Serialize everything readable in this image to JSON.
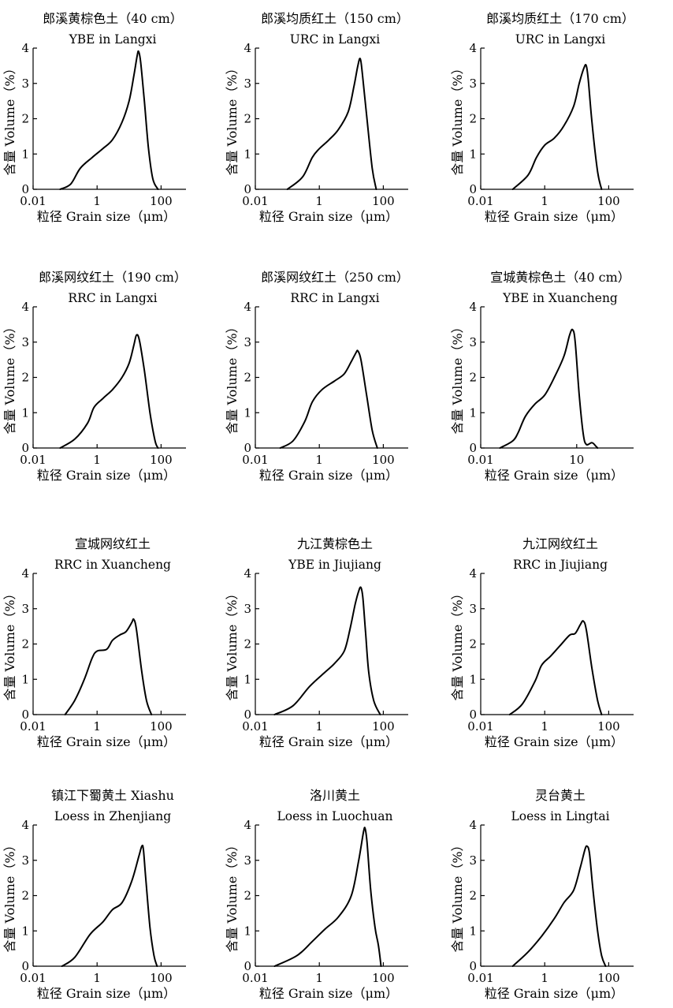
{
  "figure": {
    "xlabel": "粒径 Grain size（μm）",
    "ylabel": "含量 Volume（%）"
  },
  "chart_data": [
    {
      "type": "line",
      "title": "郎溪黄棕色土（40 cm）",
      "subtitle": "YBE in Langxi",
      "x_ticks": [
        "0.01",
        "1",
        "100"
      ],
      "y_ticks": [
        "0",
        "1",
        "2",
        "3",
        "4"
      ],
      "x_scale": "log",
      "xlim": [
        0.01,
        600
      ],
      "ylim": [
        0,
        4
      ],
      "series": [
        {
          "points": [
            [
              0.07,
              0
            ],
            [
              0.15,
              0.15
            ],
            [
              0.3,
              0.6
            ],
            [
              0.7,
              0.9
            ],
            [
              1.5,
              1.15
            ],
            [
              3,
              1.4
            ],
            [
              6,
              1.9
            ],
            [
              10,
              2.5
            ],
            [
              14,
              3.2
            ],
            [
              18,
              3.8
            ],
            [
              20,
              3.9
            ],
            [
              23,
              3.6
            ],
            [
              30,
              2.5
            ],
            [
              40,
              1.2
            ],
            [
              55,
              0.3
            ],
            [
              80,
              0
            ]
          ]
        }
      ]
    },
    {
      "type": "line",
      "title": "郎溪均质红土（150 cm）",
      "subtitle": "URC in Langxi",
      "x_ticks": [
        "0.01",
        "1",
        "100"
      ],
      "y_ticks": [
        "0",
        "1",
        "2",
        "3",
        "4"
      ],
      "x_scale": "log",
      "xlim": [
        0.01,
        600
      ],
      "ylim": [
        0,
        4
      ],
      "series": [
        {
          "points": [
            [
              0.1,
              0
            ],
            [
              0.3,
              0.35
            ],
            [
              0.6,
              0.9
            ],
            [
              1,
              1.15
            ],
            [
              2,
              1.4
            ],
            [
              4,
              1.7
            ],
            [
              8,
              2.2
            ],
            [
              12,
              2.9
            ],
            [
              16,
              3.5
            ],
            [
              19,
              3.7
            ],
            [
              22,
              3.3
            ],
            [
              30,
              2.1
            ],
            [
              45,
              0.6
            ],
            [
              60,
              0
            ]
          ]
        }
      ]
    },
    {
      "type": "line",
      "title": "郎溪均质红土（170 cm）",
      "subtitle": "URC in Langxi",
      "x_ticks": [
        "0.01",
        "1",
        "100"
      ],
      "y_ticks": [
        "0",
        "1",
        "2",
        "3",
        "4"
      ],
      "x_scale": "log",
      "xlim": [
        0.01,
        600
      ],
      "ylim": [
        0,
        4
      ],
      "series": [
        {
          "points": [
            [
              0.1,
              0
            ],
            [
              0.3,
              0.4
            ],
            [
              0.55,
              0.9
            ],
            [
              1,
              1.25
            ],
            [
              2,
              1.45
            ],
            [
              4,
              1.8
            ],
            [
              8,
              2.35
            ],
            [
              12,
              3.0
            ],
            [
              17,
              3.45
            ],
            [
              20,
              3.5
            ],
            [
              23,
              3.1
            ],
            [
              30,
              1.9
            ],
            [
              45,
              0.5
            ],
            [
              60,
              0
            ]
          ]
        }
      ]
    },
    {
      "type": "line",
      "title": "郎溪网纹红土（190 cm）",
      "subtitle": "RRC in Langxi",
      "x_ticks": [
        "0.01",
        "1",
        "100"
      ],
      "y_ticks": [
        "0",
        "1",
        "2",
        "3",
        "4"
      ],
      "x_scale": "log",
      "xlim": [
        0.01,
        600
      ],
      "ylim": [
        0,
        4
      ],
      "series": [
        {
          "points": [
            [
              0.07,
              0
            ],
            [
              0.2,
              0.25
            ],
            [
              0.5,
              0.7
            ],
            [
              0.8,
              1.15
            ],
            [
              1.5,
              1.4
            ],
            [
              3,
              1.65
            ],
            [
              6,
              2.0
            ],
            [
              10,
              2.4
            ],
            [
              14,
              2.9
            ],
            [
              17,
              3.2
            ],
            [
              21,
              3.05
            ],
            [
              30,
              2.2
            ],
            [
              45,
              1.0
            ],
            [
              65,
              0.2
            ],
            [
              80,
              0
            ]
          ]
        }
      ]
    },
    {
      "type": "line",
      "title": "郎溪网纹红土（250 cm）",
      "subtitle": "RRC in Langxi",
      "x_ticks": [
        "0.01",
        "1",
        "100"
      ],
      "y_ticks": [
        "0",
        "1",
        "2",
        "3",
        "4"
      ],
      "x_scale": "log",
      "xlim": [
        0.01,
        600
      ],
      "ylim": [
        0,
        4
      ],
      "series": [
        {
          "points": [
            [
              0.06,
              0
            ],
            [
              0.15,
              0.2
            ],
            [
              0.35,
              0.75
            ],
            [
              0.6,
              1.3
            ],
            [
              1.2,
              1.65
            ],
            [
              3,
              1.9
            ],
            [
              6,
              2.1
            ],
            [
              10,
              2.45
            ],
            [
              14,
              2.7
            ],
            [
              16,
              2.75
            ],
            [
              20,
              2.5
            ],
            [
              30,
              1.5
            ],
            [
              45,
              0.5
            ],
            [
              65,
              0
            ]
          ]
        }
      ]
    },
    {
      "type": "line",
      "title": "宣城黄棕色土（40 cm）",
      "subtitle": "YBE in Xuancheng",
      "x_ticks": [
        "0.01",
        "10"
      ],
      "y_ticks": [
        "0",
        "1",
        "2",
        "3",
        "4"
      ],
      "x_scale": "log",
      "xlim": [
        0.01,
        600
      ],
      "ylim": [
        0,
        4
      ],
      "series": [
        {
          "points": [
            [
              0.04,
              0
            ],
            [
              0.1,
              0.2
            ],
            [
              0.15,
              0.45
            ],
            [
              0.25,
              0.9
            ],
            [
              0.5,
              1.25
            ],
            [
              1,
              1.5
            ],
            [
              2,
              2.0
            ],
            [
              4,
              2.6
            ],
            [
              6,
              3.2
            ],
            [
              7.5,
              3.35
            ],
            [
              9,
              3.0
            ],
            [
              12,
              1.5
            ],
            [
              16,
              0.4
            ],
            [
              20,
              0.1
            ],
            [
              30,
              0.15
            ],
            [
              40,
              0.05
            ],
            [
              45,
              0
            ]
          ]
        }
      ]
    },
    {
      "type": "line",
      "title": "宣城网纹红土",
      "subtitle": "RRC in Xuancheng",
      "x_ticks": [
        "0.01",
        "1",
        "100"
      ],
      "y_ticks": [
        "0",
        "1",
        "2",
        "3",
        "4"
      ],
      "x_scale": "log",
      "xlim": [
        0.01,
        600
      ],
      "ylim": [
        0,
        4
      ],
      "series": [
        {
          "points": [
            [
              0.1,
              0
            ],
            [
              0.2,
              0.4
            ],
            [
              0.4,
              1.0
            ],
            [
              0.7,
              1.6
            ],
            [
              1,
              1.8
            ],
            [
              2,
              1.85
            ],
            [
              3,
              2.1
            ],
            [
              5,
              2.25
            ],
            [
              8,
              2.35
            ],
            [
              12,
              2.6
            ],
            [
              14,
              2.7
            ],
            [
              17,
              2.4
            ],
            [
              25,
              1.2
            ],
            [
              35,
              0.4
            ],
            [
              50,
              0
            ]
          ]
        }
      ]
    },
    {
      "type": "line",
      "title": "九江黄棕色土",
      "subtitle": "YBE in Jiujiang",
      "x_ticks": [
        "0.01",
        "1",
        "100"
      ],
      "y_ticks": [
        "0",
        "1",
        "2",
        "3",
        "4"
      ],
      "x_scale": "log",
      "xlim": [
        0.01,
        600
      ],
      "ylim": [
        0,
        4
      ],
      "series": [
        {
          "points": [
            [
              0.04,
              0
            ],
            [
              0.15,
              0.25
            ],
            [
              0.5,
              0.8
            ],
            [
              1.5,
              1.2
            ],
            [
              3,
              1.45
            ],
            [
              6,
              1.8
            ],
            [
              9,
              2.4
            ],
            [
              13,
              3.1
            ],
            [
              17,
              3.5
            ],
            [
              20,
              3.6
            ],
            [
              23,
              3.3
            ],
            [
              28,
              2.3
            ],
            [
              35,
              1.2
            ],
            [
              50,
              0.4
            ],
            [
              80,
              0
            ]
          ]
        }
      ]
    },
    {
      "type": "line",
      "title": "九江网纹红土",
      "subtitle": "RRC in Jiujiang",
      "x_ticks": [
        "0.01",
        "1",
        "100"
      ],
      "y_ticks": [
        "0",
        "1",
        "2",
        "3",
        "4"
      ],
      "x_scale": "log",
      "xlim": [
        0.01,
        600
      ],
      "ylim": [
        0,
        4
      ],
      "series": [
        {
          "points": [
            [
              0.08,
              0
            ],
            [
              0.2,
              0.3
            ],
            [
              0.5,
              0.95
            ],
            [
              0.8,
              1.4
            ],
            [
              1.5,
              1.65
            ],
            [
              3,
              1.95
            ],
            [
              6,
              2.25
            ],
            [
              9,
              2.3
            ],
            [
              13,
              2.55
            ],
            [
              16,
              2.65
            ],
            [
              20,
              2.4
            ],
            [
              30,
              1.3
            ],
            [
              45,
              0.4
            ],
            [
              60,
              0
            ]
          ]
        }
      ]
    },
    {
      "type": "line",
      "title": "镇江下蜀黄土 Xiashu",
      "subtitle": "Loess in Zhenjiang",
      "x_ticks": [
        "0.01",
        "1",
        "100"
      ],
      "y_ticks": [
        "0",
        "1",
        "2",
        "3",
        "4"
      ],
      "x_scale": "log",
      "xlim": [
        0.01,
        600
      ],
      "ylim": [
        0,
        4
      ],
      "series": [
        {
          "points": [
            [
              0.08,
              0
            ],
            [
              0.2,
              0.25
            ],
            [
              0.6,
              0.9
            ],
            [
              1.5,
              1.25
            ],
            [
              3,
              1.6
            ],
            [
              6,
              1.8
            ],
            [
              12,
              2.4
            ],
            [
              20,
              3.1
            ],
            [
              25,
              3.4
            ],
            [
              28,
              3.3
            ],
            [
              33,
              2.5
            ],
            [
              45,
              1.1
            ],
            [
              60,
              0.3
            ],
            [
              75,
              0
            ]
          ]
        }
      ]
    },
    {
      "type": "line",
      "title": "洛川黄土",
      "subtitle": "Loess in Luochuan",
      "x_ticks": [
        "0.01",
        "1",
        "100"
      ],
      "y_ticks": [
        "0",
        "1",
        "2",
        "3",
        "4"
      ],
      "x_scale": "log",
      "xlim": [
        0.01,
        600
      ],
      "ylim": [
        0,
        4
      ],
      "series": [
        {
          "points": [
            [
              0.04,
              0
            ],
            [
              0.2,
              0.3
            ],
            [
              0.6,
              0.7
            ],
            [
              1.5,
              1.05
            ],
            [
              4,
              1.4
            ],
            [
              10,
              2.0
            ],
            [
              17,
              3.0
            ],
            [
              24,
              3.8
            ],
            [
              27,
              3.9
            ],
            [
              31,
              3.5
            ],
            [
              40,
              2.2
            ],
            [
              55,
              1.1
            ],
            [
              70,
              0.6
            ],
            [
              85,
              0
            ]
          ]
        }
      ]
    },
    {
      "type": "line",
      "title": "灵台黄土",
      "subtitle": "Loess in Lingtai",
      "x_ticks": [
        "0.01",
        "1",
        "100"
      ],
      "y_ticks": [
        "0",
        "1",
        "2",
        "3",
        "4"
      ],
      "x_scale": "log",
      "xlim": [
        0.01,
        600
      ],
      "ylim": [
        0,
        4
      ],
      "series": [
        {
          "points": [
            [
              0.1,
              0
            ],
            [
              0.3,
              0.4
            ],
            [
              0.8,
              0.85
            ],
            [
              2,
              1.35
            ],
            [
              4,
              1.8
            ],
            [
              8,
              2.15
            ],
            [
              13,
              2.8
            ],
            [
              18,
              3.3
            ],
            [
              21,
              3.4
            ],
            [
              25,
              3.2
            ],
            [
              32,
              2.2
            ],
            [
              45,
              1.0
            ],
            [
              60,
              0.3
            ],
            [
              80,
              0
            ]
          ]
        }
      ]
    }
  ]
}
